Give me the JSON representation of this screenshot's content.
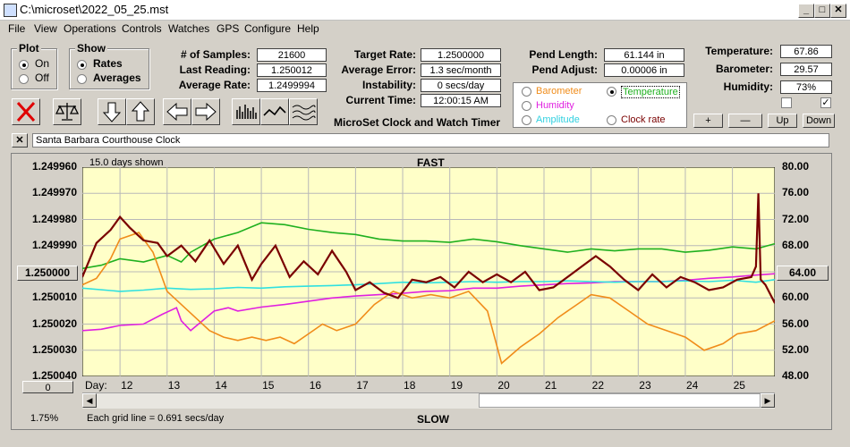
{
  "window": {
    "title": "C:\\microset\\2022_05_25.mst"
  },
  "menu": [
    "File",
    "View",
    "Operations",
    "Controls",
    "Watches",
    "GPS",
    "Configure",
    "Help"
  ],
  "plot_group": {
    "label": "Plot",
    "on": "On",
    "off": "Off",
    "selected": "On"
  },
  "show_group": {
    "label": "Show",
    "rates": "Rates",
    "averages": "Averages",
    "selected": "Rates"
  },
  "stats": {
    "samples_label": "# of Samples:",
    "samples": "21600",
    "last_reading_label": "Last Reading:",
    "last_reading": "1.250012",
    "avg_rate_label": "Average Rate:",
    "avg_rate": "1.2499994",
    "target_rate_label": "Target Rate:",
    "target_rate": "1.2500000",
    "avg_error_label": "Average Error:",
    "avg_error": "1.3 sec/month",
    "instability_label": "Instability:",
    "instability": "0 secs/day",
    "current_time_label": "Current Time:",
    "current_time": "12:00:15 AM",
    "pend_length_label": "Pend Length:",
    "pend_length": "61.144 in",
    "pend_adjust_label": "Pend Adjust:",
    "pend_adjust": "0.00006 in",
    "temperature_label": "Temperature:",
    "temperature": "67.86",
    "barometer_label": "Barometer:",
    "barometer": "29.57",
    "humidity_label": "Humidity:",
    "humidity": "73%"
  },
  "app_caption": "MicroSet Clock and Watch Timer",
  "overlay_options": {
    "barometer": "Barometer",
    "temperature": "Temperature",
    "humidity": "Humidity",
    "amplitude": "Amplitude",
    "clock_rate": "Clock rate",
    "selected": "Temperature"
  },
  "right_buttons": {
    "plus": "+",
    "minus": "—",
    "up": "Up",
    "down": "Down"
  },
  "description": "Santa Barbara Courthouse Clock",
  "clear_button": "✕",
  "chart_header": {
    "days_shown": "15.0 days shown",
    "fast": "FAST",
    "slow": "SLOW",
    "grid_note": "Each grid line = 0.691 secs/day",
    "percent": "1.75%"
  },
  "side_buttons": {
    "left_value": "1.250000",
    "right_value": "64.00",
    "bottom_left": "0"
  },
  "colors": {
    "rate": "#7a0000",
    "temperature": "#1fb01f",
    "humidity": "#e020e0",
    "amplitude": "#30e0e0",
    "barometer": "#f08c1a",
    "plot_bg": "#ffffc8"
  },
  "chart_data": {
    "type": "line",
    "xlabel": "Day:",
    "x_ticks": [
      "12",
      "13",
      "14",
      "15",
      "16",
      "17",
      "18",
      "19",
      "20",
      "21",
      "22",
      "23",
      "24",
      "25"
    ],
    "x_range": [
      11.2,
      25.9
    ],
    "y_left_ticks": [
      "1.249960",
      "1.249970",
      "1.249980",
      "1.249990",
      "1.250000",
      "1.250010",
      "1.250020",
      "1.250030",
      "1.250040"
    ],
    "y_left_range": [
      1.24996,
      1.25004
    ],
    "y_left_inverted": true,
    "y_right_ticks": [
      "80.00",
      "76.00",
      "72.00",
      "68.00",
      "64.00",
      "60.00",
      "56.00",
      "52.00",
      "48.00"
    ],
    "y_right_range": [
      48,
      80
    ],
    "grid": true,
    "series": [
      {
        "name": "Temperature",
        "axis": "right",
        "x": [
          11.2,
          11.6,
          12,
          12.5,
          13,
          13.3,
          13.5,
          14,
          14.5,
          15,
          15.5,
          16,
          16.5,
          17,
          17.5,
          18,
          18.5,
          19,
          19.5,
          20,
          20.5,
          21,
          21.5,
          22,
          22.5,
          23,
          23.5,
          24,
          24.5,
          25,
          25.5,
          25.9
        ],
        "y": [
          64.5,
          65,
          66,
          65.5,
          66.5,
          65.5,
          67,
          69,
          70,
          71.5,
          71.2,
          70.5,
          70,
          69.7,
          69,
          68.7,
          68.7,
          68.5,
          69,
          68.6,
          68,
          67.5,
          67,
          67.5,
          67.2,
          67.5,
          67.5,
          67,
          67.3,
          67.8,
          67.5,
          68.3
        ]
      },
      {
        "name": "Humidity",
        "axis": "right",
        "x": [
          11.2,
          11.6,
          12,
          12.5,
          12.9,
          13.2,
          13.3,
          13.5,
          14,
          14.3,
          14.5,
          15,
          15.5,
          16,
          16.5,
          17,
          17.5,
          18,
          18.5,
          19,
          19.5,
          20,
          20.5,
          21,
          21.5,
          22,
          22.5,
          23,
          23.5,
          24,
          24.5,
          25,
          25.5,
          25.9
        ],
        "y": [
          55,
          55.2,
          55.8,
          56,
          57.5,
          58.5,
          56.5,
          55,
          58,
          58.5,
          58,
          58.6,
          59,
          59.5,
          60,
          60.3,
          60.5,
          60.7,
          61,
          61.1,
          61.5,
          61.5,
          61.8,
          62,
          62.2,
          62.3,
          62.5,
          62.5,
          62.5,
          62.7,
          63,
          63.2,
          63.5,
          63.7
        ]
      },
      {
        "name": "Amplitude",
        "axis": "right",
        "x": [
          11.2,
          12,
          12.5,
          13,
          13.5,
          14,
          14.5,
          15,
          15.5,
          16,
          16.5,
          17,
          17.5,
          18,
          18.5,
          19,
          19.5,
          20,
          20.5,
          21,
          21.5,
          22,
          22.5,
          23,
          23.5,
          24,
          24.5,
          25,
          25.5,
          25.9
        ],
        "y": [
          61.5,
          61,
          61.2,
          61.5,
          61.3,
          61.4,
          61.6,
          61.5,
          61.7,
          61.8,
          61.9,
          62,
          62.2,
          62.4,
          62.3,
          62.4,
          62.5,
          62.4,
          62.5,
          62.5,
          62.6,
          62.5,
          62.4,
          62.5,
          62.5,
          62.6,
          62.5,
          62.7,
          62.4,
          62.8
        ]
      },
      {
        "name": "Barometer",
        "axis": "right",
        "x": [
          11.2,
          11.5,
          11.8,
          12,
          12.4,
          12.7,
          13,
          13.3,
          13.6,
          13.9,
          14.2,
          14.5,
          14.8,
          15.1,
          15.4,
          15.7,
          16,
          16.3,
          16.6,
          17,
          17.4,
          17.8,
          18.2,
          18.6,
          19,
          19.4,
          19.8,
          20.1,
          20.5,
          20.9,
          21.3,
          21.7,
          22,
          22.4,
          22.8,
          23.2,
          23.6,
          24,
          24.4,
          24.8,
          25.1,
          25.5,
          25.9
        ],
        "y": [
          62,
          63,
          66,
          69,
          70,
          67,
          61,
          59,
          57,
          55,
          54,
          53.5,
          54,
          53.5,
          54,
          53,
          54.5,
          56,
          55,
          56,
          59,
          61,
          60,
          60.5,
          60,
          61,
          58,
          50,
          52.5,
          54.5,
          57,
          59,
          60.5,
          60,
          58,
          56,
          55,
          54,
          52,
          53,
          54.5,
          55,
          56.5
        ]
      },
      {
        "name": "Rate",
        "axis": "left",
        "x": [
          11.2,
          11.5,
          11.8,
          12,
          12.2,
          12.5,
          12.8,
          13,
          13.3,
          13.6,
          13.9,
          14.2,
          14.5,
          14.8,
          15,
          15.3,
          15.6,
          15.9,
          16.2,
          16.5,
          16.8,
          17,
          17.3,
          17.6,
          17.9,
          18.2,
          18.5,
          18.8,
          19.1,
          19.4,
          19.7,
          20,
          20.3,
          20.6,
          20.9,
          21.2,
          21.5,
          21.8,
          22.1,
          22.4,
          22.7,
          23,
          23.3,
          23.6,
          23.9,
          24.2,
          24.5,
          24.8,
          25.1,
          25.4,
          25.5,
          25.55,
          25.6,
          25.7,
          25.9
        ],
        "y": [
          1.250002,
          1.249989,
          1.249984,
          1.249979,
          1.249983,
          1.249988,
          1.249989,
          1.249994,
          1.24999,
          1.249996,
          1.249988,
          1.249997,
          1.24999,
          1.250003,
          1.249997,
          1.24999,
          1.250002,
          1.249996,
          1.250001,
          1.249992,
          1.25,
          1.250007,
          1.250004,
          1.250008,
          1.25001,
          1.250003,
          1.250004,
          1.250002,
          1.250006,
          1.25,
          1.250004,
          1.250001,
          1.250004,
          1.25,
          1.250007,
          1.250006,
          1.250002,
          1.249998,
          1.249994,
          1.249998,
          1.250003,
          1.250007,
          1.250001,
          1.250006,
          1.250002,
          1.250004,
          1.250007,
          1.250006,
          1.250003,
          1.250002,
          1.249998,
          1.24997,
          1.250003,
          1.250005,
          1.250012
        ]
      }
    ]
  }
}
